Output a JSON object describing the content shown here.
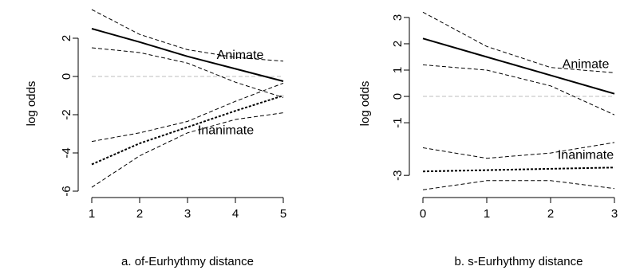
{
  "chart_data": [
    {
      "type": "line",
      "xlabel": "a. of-Eurhythmy distance",
      "ylabel": "log odds",
      "xlim": [
        1,
        5
      ],
      "ylim": [
        -6,
        3.5
      ],
      "xticks": [
        1,
        2,
        3,
        4,
        5
      ],
      "yticks": [
        -6,
        -4,
        -2,
        0,
        2
      ],
      "reference_line": 0,
      "annotations": [
        {
          "text": "Animate",
          "x": 4.1,
          "y": 1.1
        },
        {
          "text": "Inanimate",
          "x": 3.8,
          "y": -2.85
        }
      ],
      "series": [
        {
          "group": "animate",
          "kind": "fit",
          "x": [
            1,
            2,
            3,
            4,
            5
          ],
          "y": [
            2.5,
            1.8,
            1.05,
            0.4,
            -0.25
          ]
        },
        {
          "group": "animate",
          "kind": "upper",
          "x": [
            1,
            2,
            3,
            4,
            5
          ],
          "y": [
            3.5,
            2.2,
            1.4,
            1.0,
            0.8
          ]
        },
        {
          "group": "animate",
          "kind": "lower",
          "x": [
            1,
            2,
            3,
            4,
            5
          ],
          "y": [
            1.5,
            1.25,
            0.7,
            -0.3,
            -1.1
          ]
        },
        {
          "group": "inanimate",
          "kind": "fit",
          "x": [
            1,
            2,
            3,
            4,
            5
          ],
          "y": [
            -4.6,
            -3.5,
            -2.65,
            -1.8,
            -1.0
          ]
        },
        {
          "group": "inanimate",
          "kind": "upper",
          "x": [
            1,
            2,
            3,
            4,
            5
          ],
          "y": [
            -3.4,
            -2.95,
            -2.35,
            -1.3,
            -0.35
          ]
        },
        {
          "group": "inanimate",
          "kind": "lower",
          "x": [
            1,
            2,
            3,
            4,
            5
          ],
          "y": [
            -5.8,
            -4.15,
            -2.95,
            -2.25,
            -1.9
          ]
        }
      ]
    },
    {
      "type": "line",
      "xlabel": "b. s-Eurhythmy distance",
      "ylabel": "log odds",
      "xlim": [
        0,
        3
      ],
      "ylim": [
        -3.6,
        3.3
      ],
      "xticks": [
        0,
        1,
        2,
        3
      ],
      "yticks": [
        -3,
        -1,
        0,
        1,
        2,
        3
      ],
      "reference_line": 0,
      "annotations": [
        {
          "text": "Animate",
          "x": 2.55,
          "y": 1.2
        },
        {
          "text": "Inanimate",
          "x": 2.55,
          "y": -2.25
        }
      ],
      "series": [
        {
          "group": "animate",
          "kind": "fit",
          "x": [
            0,
            1,
            2,
            3
          ],
          "y": [
            2.2,
            1.5,
            0.8,
            0.1
          ]
        },
        {
          "group": "animate",
          "kind": "upper",
          "x": [
            0,
            1,
            2,
            3
          ],
          "y": [
            3.2,
            1.9,
            1.1,
            0.9
          ]
        },
        {
          "group": "animate",
          "kind": "lower",
          "x": [
            0,
            1,
            2,
            3
          ],
          "y": [
            1.2,
            1.0,
            0.4,
            -0.7
          ]
        },
        {
          "group": "inanimate",
          "kind": "fit",
          "x": [
            0,
            1,
            2,
            3
          ],
          "y": [
            -2.85,
            -2.8,
            -2.75,
            -2.7
          ]
        },
        {
          "group": "inanimate",
          "kind": "upper",
          "x": [
            0,
            1,
            2,
            3
          ],
          "y": [
            -1.95,
            -2.35,
            -2.15,
            -1.75
          ]
        },
        {
          "group": "inanimate",
          "kind": "lower",
          "x": [
            0,
            1,
            2,
            3
          ],
          "y": [
            -3.55,
            -3.2,
            -3.2,
            -3.5
          ]
        }
      ]
    }
  ]
}
